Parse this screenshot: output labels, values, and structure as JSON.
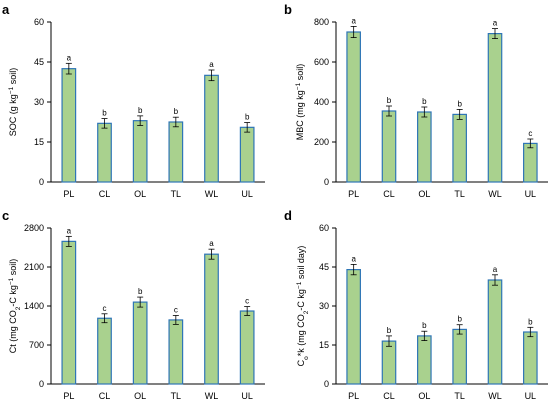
{
  "chart_data": [
    {
      "type": "bar",
      "panel": "a",
      "categories": [
        "PL",
        "CL",
        "OL",
        "TL",
        "WL",
        "UL"
      ],
      "values": [
        42.5,
        22.0,
        23.0,
        22.5,
        40.0,
        20.5
      ],
      "errors": [
        2.0,
        1.8,
        1.8,
        1.8,
        2.0,
        1.8
      ],
      "significance": [
        "a",
        "b",
        "b",
        "b",
        "a",
        "b"
      ],
      "ylabel_parts": [
        [
          "SOC (g kg",
          ""
        ],
        [
          "−1",
          "sup"
        ],
        [
          " soil)",
          ""
        ]
      ],
      "ylim": [
        0,
        60
      ],
      "yticks": [
        0,
        15,
        30,
        45,
        60
      ],
      "grid": false,
      "bar_fill": "#a9d18e",
      "bar_edge": "#2e75b6"
    },
    {
      "type": "bar",
      "panel": "b",
      "categories": [
        "PL",
        "CL",
        "OL",
        "TL",
        "WL",
        "UL"
      ],
      "values": [
        750,
        355,
        350,
        338,
        742,
        193
      ],
      "errors": [
        28,
        25,
        25,
        25,
        25,
        22
      ],
      "significance": [
        "a",
        "b",
        "b",
        "b",
        "a",
        "c"
      ],
      "ylabel_parts": [
        [
          "MBC (mg kg",
          ""
        ],
        [
          "−1",
          "sup"
        ],
        [
          " soil)",
          ""
        ]
      ],
      "ylim": [
        0,
        800
      ],
      "yticks": [
        0,
        200,
        400,
        600,
        800
      ],
      "grid": false,
      "bar_fill": "#a9d18e",
      "bar_edge": "#2e75b6"
    },
    {
      "type": "bar",
      "panel": "c",
      "categories": [
        "PL",
        "CL",
        "OL",
        "TL",
        "WL",
        "UL"
      ],
      "values": [
        2560,
        1180,
        1470,
        1150,
        2330,
        1310
      ],
      "errors": [
        90,
        80,
        90,
        80,
        90,
        80
      ],
      "significance": [
        "a",
        "c",
        "b",
        "c",
        "a",
        "c"
      ],
      "ylabel_parts": [
        [
          "Ct (mg CO",
          ""
        ],
        [
          "2",
          "sub"
        ],
        [
          "-C kg",
          ""
        ],
        [
          "−1",
          "sup"
        ],
        [
          " soil)",
          ""
        ]
      ],
      "ylim": [
        0,
        2800
      ],
      "yticks": [
        0,
        700,
        1400,
        2100,
        2800
      ],
      "grid": false,
      "bar_fill": "#a9d18e",
      "bar_edge": "#2e75b6"
    },
    {
      "type": "bar",
      "panel": "d",
      "categories": [
        "PL",
        "CL",
        "OL",
        "TL",
        "WL",
        "UL"
      ],
      "values": [
        44.0,
        16.5,
        18.5,
        21.0,
        40.0,
        20.0
      ],
      "errors": [
        2.0,
        2.0,
        1.8,
        1.8,
        2.0,
        1.8
      ],
      "significance": [
        "a",
        "b",
        "b",
        "b",
        "a",
        "b"
      ],
      "ylabel_parts": [
        [
          "C",
          ""
        ],
        [
          "o",
          "sub"
        ],
        [
          "*k (mg CO",
          ""
        ],
        [
          "2",
          "sub"
        ],
        [
          "-C kg",
          ""
        ],
        [
          "−1",
          "sup"
        ],
        [
          " soil day)",
          ""
        ]
      ],
      "ylim": [
        0,
        60
      ],
      "yticks": [
        0,
        15,
        30,
        45,
        60
      ],
      "grid": false,
      "bar_fill": "#a9d18e",
      "bar_edge": "#2e75b6"
    }
  ]
}
